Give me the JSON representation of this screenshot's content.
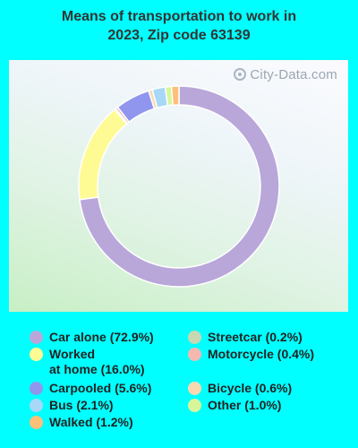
{
  "title_line1": "Means of transportation to work in",
  "title_line2": "2023, Zip code 63139",
  "watermark": "City-Data.com",
  "chart_data": {
    "type": "pie",
    "style": "donut",
    "title": "Means of transportation to work in 2023, Zip code 63139",
    "slices": [
      {
        "label": "Car alone",
        "value": 72.9,
        "color": "#b9a7da"
      },
      {
        "label": "Worked at home",
        "value": 16.0,
        "color": "#fffb94"
      },
      {
        "label": "Streetcar",
        "value": 0.2,
        "color": "#c8d8b0"
      },
      {
        "label": "Motorcycle",
        "value": 0.4,
        "color": "#f5b8b0"
      },
      {
        "label": "Carpooled",
        "value": 5.6,
        "color": "#9096ee"
      },
      {
        "label": "Bicycle",
        "value": 0.6,
        "color": "#fcd8b0"
      },
      {
        "label": "Bus",
        "value": 2.1,
        "color": "#a8d8f8"
      },
      {
        "label": "Other",
        "value": 1.0,
        "color": "#d8f59a"
      },
      {
        "label": "Walked",
        "value": 1.2,
        "color": "#fcc078"
      }
    ],
    "legend": [
      {
        "line1": "Car alone (72.9%)",
        "line2": "",
        "color": "#b9a7da",
        "col": 0,
        "row": 0
      },
      {
        "line1": "Worked",
        "line2": "at home (16.0%)",
        "color": "#fffb94",
        "col": 0,
        "row": 1
      },
      {
        "line1": "Carpooled (5.6%)",
        "line2": "",
        "color": "#9096ee",
        "col": 0,
        "row": 3
      },
      {
        "line1": "Bus (2.1%)",
        "line2": "",
        "color": "#a8d8f8",
        "col": 0,
        "row": 4
      },
      {
        "line1": "Walked (1.2%)",
        "line2": "",
        "color": "#fcc078",
        "col": 0,
        "row": 5
      },
      {
        "line1": "Streetcar (0.2%)",
        "line2": "",
        "color": "#c8d8b0",
        "col": 1,
        "row": 0
      },
      {
        "line1": "Motorcycle (0.4%)",
        "line2": "",
        "color": "#f5b8b0",
        "col": 1,
        "row": 1
      },
      {
        "line1": "Bicycle (0.6%)",
        "line2": "",
        "color": "#fcd8b0",
        "col": 1,
        "row": 3
      },
      {
        "line1": "Other (1.0%)",
        "line2": "",
        "color": "#d8f59a",
        "col": 1,
        "row": 4
      }
    ]
  }
}
